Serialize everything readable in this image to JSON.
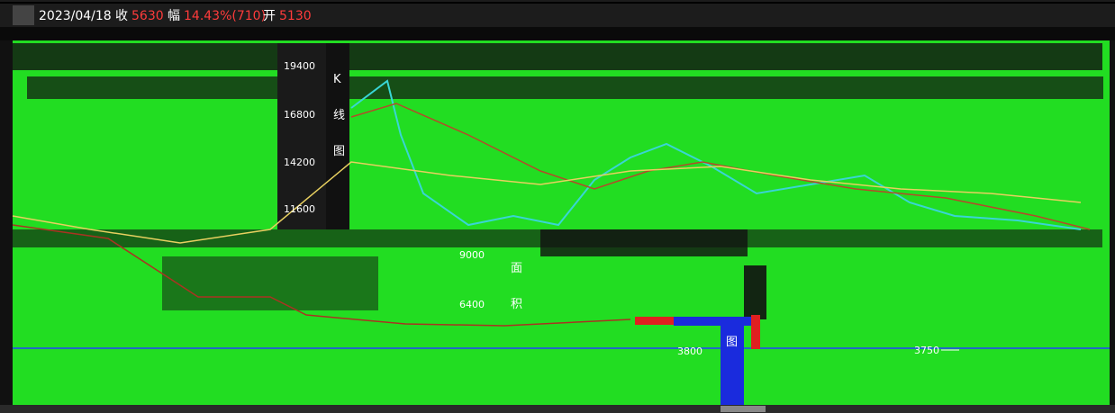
{
  "header": {
    "date": "2023/04/18",
    "close_label": "收",
    "close": "5630",
    "change_label": "幅",
    "change": "14.43%(710)",
    "open_label": "开",
    "open": "5130"
  },
  "upper_axis": [
    "19400",
    "16800",
    "14200",
    "11600"
  ],
  "lower_axis": [
    "9000",
    "6400",
    "3800"
  ],
  "marker": "3750",
  "kline_caption": [
    "K",
    "线",
    "图"
  ],
  "area_caption": [
    "面",
    "积",
    "图"
  ]
}
